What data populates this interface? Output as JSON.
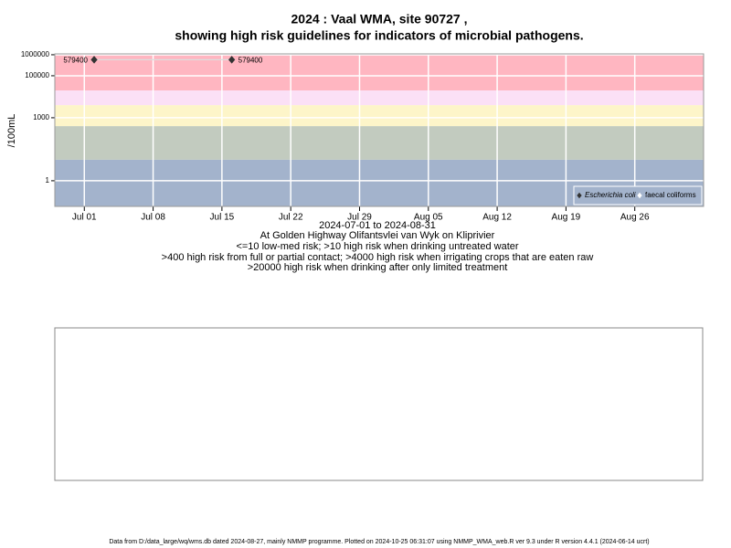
{
  "chart_data": {
    "type": "scatter",
    "title": [
      "2024 : Vaal WMA, site 90727 ,",
      "showing high risk guidelines for indicators of microbial pathogens."
    ],
    "y_label": "/100mL",
    "x_label": "2024-07-01 to 2024-08-31",
    "annotations": [
      "At Golden Highway Olifantsvlei van Wyk on Kliprivier",
      "<=10 low-med risk; >10 high risk when drinking untreated water",
      ">400 high risk from full or partial contact; >4000 high risk when irrigating crops that are eaten raw",
      ">20000 high risk when drinking after only limited treatment"
    ],
    "footer": "Data from D:/data_large/wq/wms.db dated 2024-08-27, mainly NMMP programme. Plotted on 2024-10-25 06:31:07 using NMMP_WMA_web.R ver 9.3 under R version 4.4.1 (2024-06-14 ucrt)",
    "x": [
      "2024-07-02",
      "2024-07-16"
    ],
    "series": [
      {
        "name": "Escherichia coli",
        "color": "#333333",
        "marker": "filled-diamond",
        "values": [
          579400,
          579400
        ],
        "value_labels": [
          "579400",
          "579400"
        ]
      },
      {
        "name": "faecal coliforms",
        "color": "#333333",
        "marker": "open-diamond",
        "values": [
          null,
          null
        ]
      }
    ],
    "xlim": [
      "2024-06-28",
      "2024-09-02"
    ],
    "xticks": [
      {
        "value": "2024-07-01",
        "label": "Jul 01"
      },
      {
        "value": "2024-07-08",
        "label": "Jul 08"
      },
      {
        "value": "2024-07-15",
        "label": "Jul 15"
      },
      {
        "value": "2024-07-22",
        "label": "Jul 22"
      },
      {
        "value": "2024-07-29",
        "label": "Jul 29"
      },
      {
        "value": "2024-08-05",
        "label": "Aug 05"
      },
      {
        "value": "2024-08-12",
        "label": "Aug 12"
      },
      {
        "value": "2024-08-19",
        "label": "Aug 19"
      },
      {
        "value": "2024-08-26",
        "label": "Aug 26"
      }
    ],
    "ylim": [
      0.06,
      1100000
    ],
    "yticks": [
      1,
      1000,
      100000,
      1000000
    ],
    "log_y": true,
    "grid": true,
    "legend": "bottom-right",
    "bands": [
      {
        "upper": 10,
        "color": "#a3b3cc"
      },
      {
        "upper": 400,
        "color": "#c2cbbf"
      },
      {
        "upper": 4000,
        "color": "#fdf5c9"
      },
      {
        "upper": 20000,
        "color": "#fbe0f6"
      },
      {
        "color": "#ffb6c1"
      }
    ]
  }
}
